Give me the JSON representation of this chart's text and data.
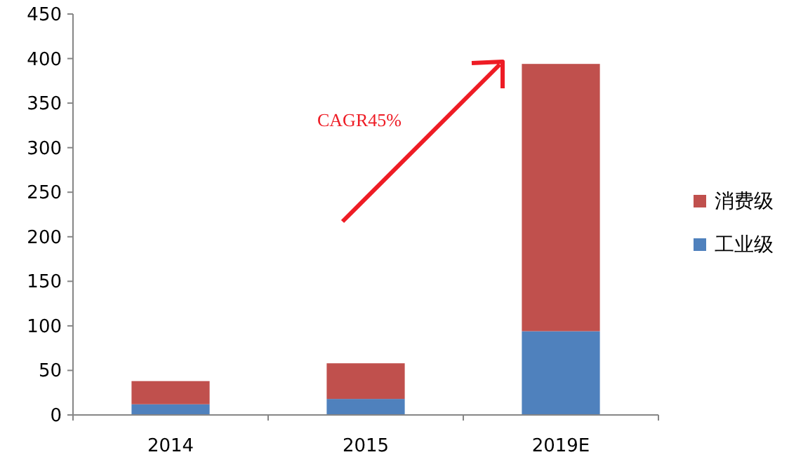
{
  "chart_data": {
    "type": "bar",
    "stacked": true,
    "categories": [
      "2014",
      "2015",
      "2019E"
    ],
    "series": [
      {
        "name": "工业级",
        "color": "#4f81bd",
        "values": [
          12,
          18,
          94
        ]
      },
      {
        "name": "消费级",
        "color": "#c0504d",
        "values": [
          26,
          40,
          300
        ]
      }
    ],
    "ylim": [
      0,
      450
    ],
    "yticks": [
      0,
      50,
      100,
      150,
      200,
      250,
      300,
      350,
      400,
      450
    ],
    "legend": "right",
    "grid": false,
    "annotations": [
      "CAGR45%"
    ]
  }
}
